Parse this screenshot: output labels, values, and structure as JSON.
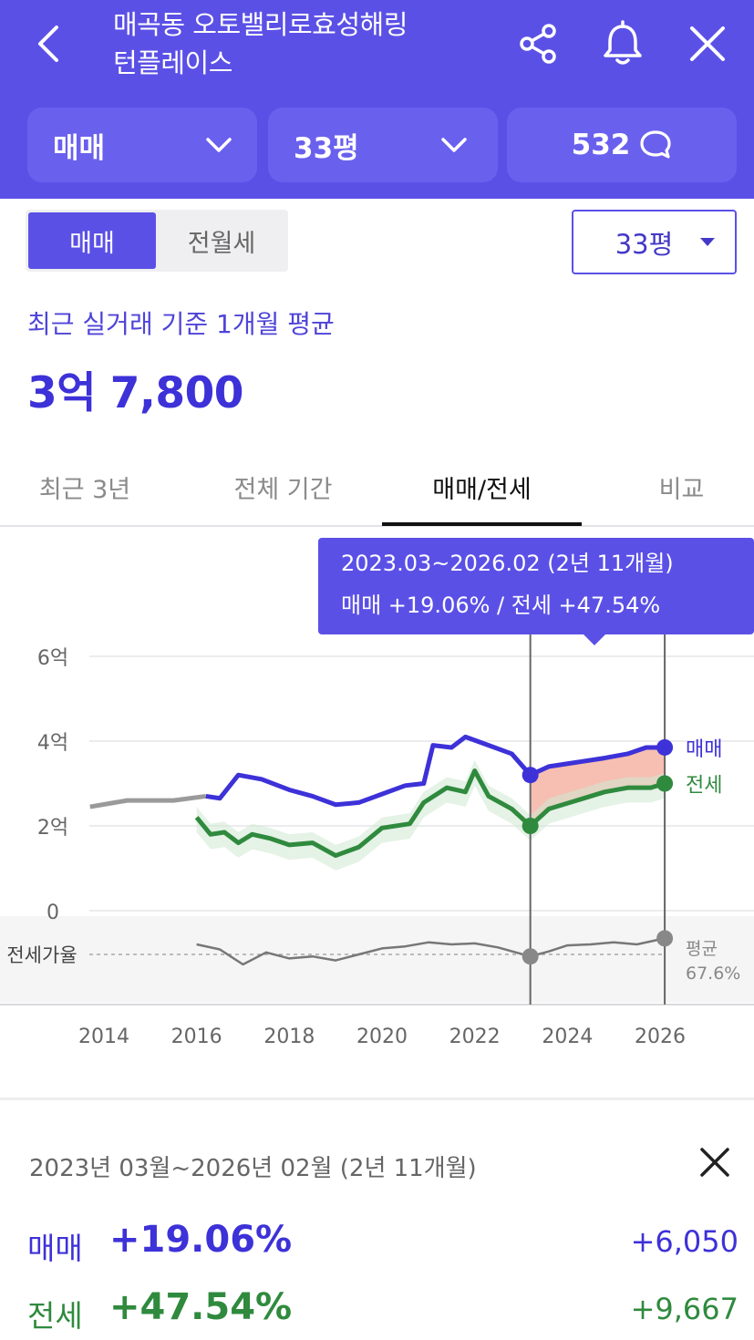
{
  "header": {
    "title_line1": "매곡동 오토밸리로효성해링",
    "title_line2": "턴플레이스",
    "deal_type": "매매",
    "size": "33평",
    "comment_count": "532"
  },
  "controls": {
    "toggle_sale": "매매",
    "toggle_rent": "전월세",
    "size_select": "33평"
  },
  "summary": {
    "label": "최근 실거래 기준 1개월 평균",
    "price": "3억 7,800"
  },
  "tabs": [
    "최근 3년",
    "전체 기간",
    "매매/전세",
    "비교"
  ],
  "active_tab": "매매/전세",
  "tooltip": {
    "line1": "2023.03~2026.02 (2년 11개월)",
    "line2": "매매 +19.06%  /  전세 +47.54%"
  },
  "chart_data": {
    "type": "line",
    "title": "",
    "xlabel": "",
    "ylabel": "",
    "x_ticks": [
      "2014",
      "2016",
      "2018",
      "2020",
      "2022",
      "2024",
      "2026"
    ],
    "y_ticks": [
      "6억",
      "4억",
      "2억",
      "0"
    ],
    "ylim": [
      0,
      6
    ],
    "y_unit": "억",
    "ratio_label": "전세가율",
    "series": [
      {
        "name": "매매",
        "color": "#3d31d8",
        "x": [
          2013.7,
          2014.5,
          2015.5,
          2016.2,
          2016.5,
          2016.9,
          2017.4,
          2018.0,
          2018.5,
          2019.0,
          2019.5,
          2020.0,
          2020.5,
          2020.9,
          2021.1,
          2021.5,
          2021.8,
          2022.3,
          2022.8,
          2023.2,
          2023.6,
          2024.2,
          2024.8,
          2025.3,
          2025.7,
          2026.1
        ],
        "values": [
          2.45,
          2.6,
          2.6,
          2.7,
          2.65,
          3.2,
          3.1,
          2.85,
          2.7,
          2.5,
          2.55,
          2.75,
          2.95,
          3.0,
          3.9,
          3.85,
          4.1,
          3.9,
          3.7,
          3.2,
          3.4,
          3.5,
          3.6,
          3.7,
          3.85,
          3.85
        ]
      },
      {
        "name": "전세",
        "color": "#2f8a3e",
        "x": [
          2016.0,
          2016.3,
          2016.6,
          2016.9,
          2017.2,
          2017.6,
          2018.0,
          2018.5,
          2019.0,
          2019.5,
          2020.0,
          2020.6,
          2020.9,
          2021.4,
          2021.8,
          2022.0,
          2022.3,
          2022.8,
          2023.2,
          2023.6,
          2024.2,
          2024.8,
          2025.3,
          2025.8,
          2026.1
        ],
        "values": [
          2.2,
          1.8,
          1.85,
          1.6,
          1.8,
          1.7,
          1.55,
          1.6,
          1.3,
          1.5,
          1.95,
          2.05,
          2.55,
          2.9,
          2.8,
          3.3,
          2.7,
          2.4,
          2.0,
          2.4,
          2.6,
          2.8,
          2.9,
          2.9,
          3.0
        ]
      }
    ],
    "ratio_series": {
      "name": "평균",
      "value_label": "67.6%",
      "color": "#777777",
      "x": [
        2016.0,
        2016.5,
        2017.0,
        2017.5,
        2018.0,
        2018.5,
        2019.0,
        2019.5,
        2020.0,
        2020.5,
        2021.0,
        2021.5,
        2022.0,
        2022.5,
        2023.2,
        2023.6,
        2024.0,
        2024.5,
        2025.0,
        2025.5,
        2026.1
      ],
      "values": [
        0.5,
        0.25,
        -0.5,
        0.1,
        -0.2,
        -0.1,
        -0.3,
        0.0,
        0.3,
        0.4,
        0.6,
        0.5,
        0.55,
        0.35,
        -0.1,
        0.15,
        0.45,
        0.5,
        0.6,
        0.5,
        0.8
      ]
    },
    "highlight": {
      "start": 2023.2,
      "end": 2026.1,
      "fill": "#f4a898"
    },
    "legend": {
      "sale": "매매",
      "jeonse": "전세"
    }
  },
  "detail": {
    "range": "2023년 03월~2026년 02월 (2년 11개월)",
    "sale_name": "매매",
    "sale_pct": "+19.06%",
    "sale_amt": "+6,050",
    "jeonse_name": "전세",
    "jeonse_pct": "+47.54%",
    "jeonse_amt": "+9,667"
  },
  "colors": {
    "brand": "#5b50e6",
    "sale": "#3d31d8",
    "jeonse": "#2f8a3e"
  }
}
